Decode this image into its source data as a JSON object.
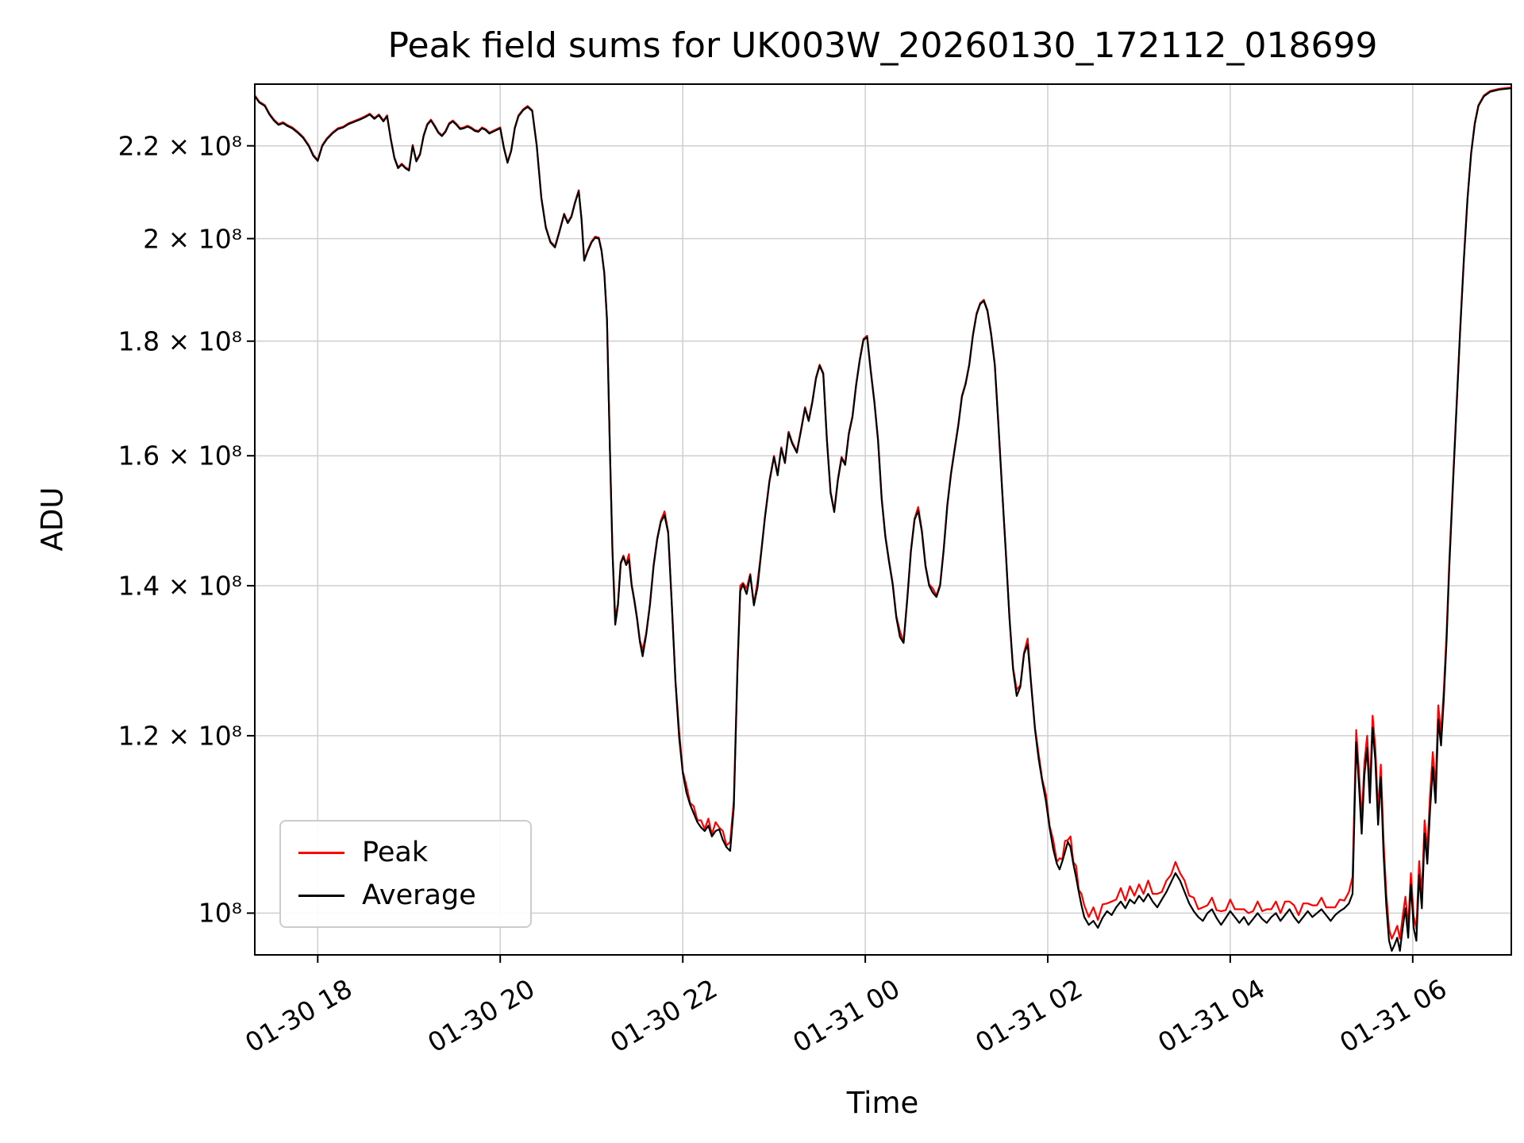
{
  "chart_data": {
    "type": "line",
    "title": "Peak field sums for UK003W_20260130_172112_018699",
    "xlabel": "Time",
    "ylabel": "ADU",
    "yscale": "log",
    "grid": true,
    "legend_position": "lower left",
    "x_unit": "hours since 2026-01-30 17:00",
    "y_unit": "ADU, values stored as multiples of 1e8",
    "xlim": [
      0.31,
      14.08
    ],
    "ylim": [
      0.958,
      2.344
    ],
    "xticks": [
      {
        "t": 1,
        "label": "01-30 18"
      },
      {
        "t": 3,
        "label": "01-30 20"
      },
      {
        "t": 5,
        "label": "01-30 22"
      },
      {
        "t": 7,
        "label": "01-31 00"
      },
      {
        "t": 9,
        "label": "01-31 02"
      },
      {
        "t": 11,
        "label": "01-31 04"
      },
      {
        "t": 13,
        "label": "01-31 06"
      }
    ],
    "yticks": [
      {
        "v": 1.0,
        "label": "10⁸"
      },
      {
        "v": 1.2,
        "label": "1.2 × 10⁸"
      },
      {
        "v": 1.4,
        "label": "1.4 × 10⁸"
      },
      {
        "v": 1.6,
        "label": "1.6 × 10⁸"
      },
      {
        "v": 1.8,
        "label": "1.8 × 10⁸"
      },
      {
        "v": 2.0,
        "label": "2 × 10⁸"
      },
      {
        "v": 2.2,
        "label": "2.2 × 10⁸"
      }
    ],
    "series": [
      {
        "name": "Peak",
        "color": "#ff0000",
        "derived": "average + delta"
      },
      {
        "name": "Average",
        "color": "#000000"
      }
    ],
    "points_format": "[t_hours, average_1e8, peak_delta_1e8 optional (default 0.002)]",
    "points": [
      [
        0.31,
        2.315
      ],
      [
        0.36,
        2.3
      ],
      [
        0.42,
        2.292
      ],
      [
        0.47,
        2.272
      ],
      [
        0.52,
        2.258
      ],
      [
        0.57,
        2.248
      ],
      [
        0.62,
        2.252
      ],
      [
        0.67,
        2.245
      ],
      [
        0.72,
        2.24
      ],
      [
        0.78,
        2.23
      ],
      [
        0.84,
        2.218
      ],
      [
        0.9,
        2.2
      ],
      [
        0.95,
        2.178
      ],
      [
        1.0,
        2.166
      ],
      [
        1.05,
        2.2
      ],
      [
        1.1,
        2.215
      ],
      [
        1.16,
        2.228
      ],
      [
        1.22,
        2.238
      ],
      [
        1.28,
        2.242
      ],
      [
        1.34,
        2.25
      ],
      [
        1.4,
        2.255
      ],
      [
        1.46,
        2.26
      ],
      [
        1.52,
        2.266
      ],
      [
        1.57,
        2.272
      ],
      [
        1.62,
        2.262
      ],
      [
        1.67,
        2.27
      ],
      [
        1.72,
        2.256
      ],
      [
        1.76,
        2.268
      ],
      [
        1.8,
        2.215
      ],
      [
        1.84,
        2.172
      ],
      [
        1.88,
        2.15
      ],
      [
        1.92,
        2.158
      ],
      [
        1.96,
        2.15
      ],
      [
        2.0,
        2.145
      ],
      [
        2.04,
        2.2
      ],
      [
        2.08,
        2.165
      ],
      [
        2.12,
        2.18
      ],
      [
        2.16,
        2.222
      ],
      [
        2.2,
        2.248
      ],
      [
        2.24,
        2.258
      ],
      [
        2.28,
        2.245
      ],
      [
        2.32,
        2.23
      ],
      [
        2.36,
        2.222
      ],
      [
        2.4,
        2.232
      ],
      [
        2.44,
        2.25
      ],
      [
        2.48,
        2.256
      ],
      [
        2.52,
        2.248
      ],
      [
        2.56,
        2.238
      ],
      [
        2.6,
        2.24
      ],
      [
        2.64,
        2.244
      ],
      [
        2.68,
        2.24
      ],
      [
        2.72,
        2.234
      ],
      [
        2.76,
        2.232
      ],
      [
        2.8,
        2.24
      ],
      [
        2.84,
        2.236
      ],
      [
        2.88,
        2.228
      ],
      [
        2.92,
        2.232
      ],
      [
        2.96,
        2.236
      ],
      [
        3.0,
        2.24
      ],
      [
        3.04,
        2.195
      ],
      [
        3.08,
        2.162
      ],
      [
        3.12,
        2.188
      ],
      [
        3.16,
        2.24
      ],
      [
        3.2,
        2.268
      ],
      [
        3.25,
        2.282
      ],
      [
        3.3,
        2.29
      ],
      [
        3.35,
        2.28
      ],
      [
        3.4,
        2.2
      ],
      [
        3.45,
        2.085
      ],
      [
        3.5,
        2.022
      ],
      [
        3.55,
        1.992
      ],
      [
        3.6,
        1.982
      ],
      [
        3.65,
        2.015
      ],
      [
        3.7,
        2.05
      ],
      [
        3.74,
        2.032
      ],
      [
        3.78,
        2.045
      ],
      [
        3.82,
        2.075
      ],
      [
        3.86,
        2.1
      ],
      [
        3.89,
        2.04
      ],
      [
        3.92,
        1.955
      ],
      [
        3.96,
        1.975
      ],
      [
        4.0,
        1.992
      ],
      [
        4.04,
        2.002
      ],
      [
        4.08,
        2.0
      ],
      [
        4.11,
        1.975
      ],
      [
        4.14,
        1.93
      ],
      [
        4.17,
        1.84
      ],
      [
        4.2,
        1.62
      ],
      [
        4.23,
        1.45
      ],
      [
        4.26,
        1.345,
        0.01
      ],
      [
        4.29,
        1.372
      ],
      [
        4.32,
        1.432
      ],
      [
        4.35,
        1.442
      ],
      [
        4.38,
        1.43
      ],
      [
        4.41,
        1.438,
        0.008
      ],
      [
        4.44,
        1.4
      ],
      [
        4.47,
        1.378
      ],
      [
        4.5,
        1.352
      ],
      [
        4.53,
        1.322
      ],
      [
        4.56,
        1.302,
        0.008
      ],
      [
        4.6,
        1.332
      ],
      [
        4.64,
        1.372
      ],
      [
        4.68,
        1.428
      ],
      [
        4.72,
        1.468
      ],
      [
        4.76,
        1.495
      ],
      [
        4.8,
        1.505,
        0.006
      ],
      [
        4.84,
        1.478
      ],
      [
        4.88,
        1.372
      ],
      [
        4.92,
        1.268
      ],
      [
        4.96,
        1.198,
        0.008
      ],
      [
        5.0,
        1.155
      ],
      [
        5.04,
        1.132,
        0.008
      ],
      [
        5.08,
        1.118
      ],
      [
        5.12,
        1.108,
        0.008
      ],
      [
        5.16,
        1.098
      ],
      [
        5.2,
        1.092,
        0.008
      ],
      [
        5.24,
        1.088
      ],
      [
        5.28,
        1.094,
        0.008
      ],
      [
        5.32,
        1.082
      ],
      [
        5.36,
        1.088,
        0.01
      ],
      [
        5.4,
        1.09
      ],
      [
        5.44,
        1.078,
        0.01
      ],
      [
        5.48,
        1.07
      ],
      [
        5.52,
        1.066,
        0.01
      ],
      [
        5.56,
        1.115,
        0.008
      ],
      [
        5.6,
        1.285
      ],
      [
        5.63,
        1.392,
        0.008
      ],
      [
        5.66,
        1.402
      ],
      [
        5.7,
        1.388,
        0.008
      ],
      [
        5.74,
        1.415
      ],
      [
        5.78,
        1.372
      ],
      [
        5.82,
        1.398,
        0.008
      ],
      [
        5.86,
        1.448
      ],
      [
        5.9,
        1.5
      ],
      [
        5.95,
        1.558
      ],
      [
        6.0,
        1.598
      ],
      [
        6.04,
        1.568
      ],
      [
        6.08,
        1.612
      ],
      [
        6.12,
        1.588
      ],
      [
        6.16,
        1.638
      ],
      [
        6.2,
        1.62
      ],
      [
        6.25,
        1.605
      ],
      [
        6.3,
        1.645
      ],
      [
        6.34,
        1.68
      ],
      [
        6.38,
        1.658
      ],
      [
        6.42,
        1.69
      ],
      [
        6.46,
        1.732
      ],
      [
        6.5,
        1.755
      ],
      [
        6.54,
        1.74
      ],
      [
        6.58,
        1.625
      ],
      [
        6.62,
        1.54
      ],
      [
        6.66,
        1.51
      ],
      [
        6.7,
        1.56
      ],
      [
        6.74,
        1.596
      ],
      [
        6.78,
        1.585
      ],
      [
        6.82,
        1.636
      ],
      [
        6.86,
        1.665
      ],
      [
        6.9,
        1.72
      ],
      [
        6.94,
        1.765
      ],
      [
        6.98,
        1.802
      ],
      [
        7.02,
        1.808
      ],
      [
        7.06,
        1.745
      ],
      [
        7.1,
        1.69
      ],
      [
        7.14,
        1.625
      ],
      [
        7.18,
        1.53
      ],
      [
        7.22,
        1.472
      ],
      [
        7.26,
        1.435
      ],
      [
        7.3,
        1.402
      ],
      [
        7.34,
        1.355
      ],
      [
        7.38,
        1.328,
        0.008
      ],
      [
        7.42,
        1.32
      ],
      [
        7.46,
        1.38
      ],
      [
        7.5,
        1.45
      ],
      [
        7.54,
        1.498
      ],
      [
        7.58,
        1.512,
        0.006
      ],
      [
        7.62,
        1.48
      ],
      [
        7.66,
        1.428
      ],
      [
        7.7,
        1.4
      ],
      [
        7.74,
        1.39,
        0.006
      ],
      [
        7.78,
        1.384
      ],
      [
        7.82,
        1.4
      ],
      [
        7.86,
        1.452
      ],
      [
        7.9,
        1.52
      ],
      [
        7.94,
        1.57
      ],
      [
        7.98,
        1.61
      ],
      [
        8.02,
        1.65
      ],
      [
        8.06,
        1.7
      ],
      [
        8.1,
        1.722
      ],
      [
        8.14,
        1.756
      ],
      [
        8.18,
        1.81
      ],
      [
        8.22,
        1.85
      ],
      [
        8.26,
        1.87
      ],
      [
        8.3,
        1.876
      ],
      [
        8.34,
        1.856
      ],
      [
        8.38,
        1.812
      ],
      [
        8.42,
        1.756
      ],
      [
        8.46,
        1.65
      ],
      [
        8.5,
        1.545
      ],
      [
        8.54,
        1.45
      ],
      [
        8.58,
        1.355
      ],
      [
        8.62,
        1.285
      ],
      [
        8.66,
        1.25,
        0.008
      ],
      [
        8.7,
        1.262
      ],
      [
        8.74,
        1.305
      ],
      [
        8.78,
        1.318,
        0.008
      ],
      [
        8.82,
        1.262
      ],
      [
        8.86,
        1.208
      ],
      [
        8.9,
        1.172,
        0.006
      ],
      [
        8.94,
        1.145
      ],
      [
        8.98,
        1.122,
        0.008
      ],
      [
        9.02,
        1.092
      ],
      [
        9.06,
        1.068,
        0.01
      ],
      [
        9.1,
        1.052
      ],
      [
        9.13,
        1.046,
        0.012
      ],
      [
        9.16,
        1.055
      ],
      [
        9.19,
        1.065,
        0.012
      ],
      [
        9.22,
        1.076
      ],
      [
        9.25,
        1.07,
        0.012
      ],
      [
        9.28,
        1.052
      ],
      [
        9.31,
        1.038,
        0.012
      ],
      [
        9.34,
        1.022
      ],
      [
        9.37,
        1.008,
        0.012
      ],
      [
        9.4,
        0.996,
        0.012
      ],
      [
        9.45,
        0.988,
        0.008
      ],
      [
        9.5,
        0.992,
        0.014
      ],
      [
        9.55,
        0.985,
        0.008
      ],
      [
        9.6,
        0.995,
        0.014
      ],
      [
        9.65,
        1.002,
        0.008
      ],
      [
        9.7,
        0.998,
        0.014
      ],
      [
        9.75,
        1.006,
        0.008
      ],
      [
        9.8,
        1.012,
        0.014
      ],
      [
        9.85,
        1.005,
        0.008
      ],
      [
        9.9,
        1.014,
        0.014
      ],
      [
        9.95,
        1.01,
        0.008
      ],
      [
        10.0,
        1.018,
        0.012
      ],
      [
        10.05,
        1.012,
        0.008
      ],
      [
        10.1,
        1.02,
        0.014
      ],
      [
        10.15,
        1.012,
        0.008
      ],
      [
        10.2,
        1.006,
        0.014
      ],
      [
        10.25,
        1.014,
        0.008
      ],
      [
        10.3,
        1.022,
        0.012
      ],
      [
        10.35,
        1.032,
        0.008
      ],
      [
        10.4,
        1.042,
        0.012
      ],
      [
        10.45,
        1.034,
        0.008
      ],
      [
        10.5,
        1.022,
        0.012
      ],
      [
        10.55,
        1.01,
        0.008
      ],
      [
        10.6,
        1.002,
        0.014
      ],
      [
        10.65,
        0.996,
        0.008
      ],
      [
        10.7,
        0.992,
        0.014
      ],
      [
        10.75,
        1.0,
        0.008
      ],
      [
        10.8,
        1.004,
        0.012
      ],
      [
        10.85,
        0.995,
        0.008
      ],
      [
        10.9,
        0.988,
        0.014
      ],
      [
        10.95,
        0.995,
        0.008
      ],
      [
        11.0,
        1.002,
        0.012
      ],
      [
        11.05,
        0.996,
        0.008
      ],
      [
        11.1,
        0.99,
        0.014
      ],
      [
        11.15,
        0.996,
        0.008
      ],
      [
        11.2,
        0.988,
        0.012
      ],
      [
        11.25,
        0.994,
        0.008
      ],
      [
        11.3,
        1.0,
        0.012
      ],
      [
        11.35,
        0.994,
        0.008
      ],
      [
        11.4,
        0.99,
        0.014
      ],
      [
        11.45,
        0.996,
        0.008
      ],
      [
        11.5,
        1.0,
        0.012
      ],
      [
        11.55,
        0.992,
        0.008
      ],
      [
        11.6,
        0.998,
        0.014
      ],
      [
        11.65,
        1.004,
        0.008
      ],
      [
        11.7,
        0.996,
        0.012
      ],
      [
        11.75,
        0.99,
        0.008
      ],
      [
        11.8,
        0.996,
        0.014
      ],
      [
        11.85,
        1.002,
        0.008
      ],
      [
        11.9,
        0.996,
        0.012
      ],
      [
        11.95,
        1.0,
        0.008
      ],
      [
        12.0,
        1.004,
        0.012
      ],
      [
        12.05,
        0.998,
        0.008
      ],
      [
        12.1,
        0.992,
        0.014
      ],
      [
        12.15,
        0.998,
        0.008
      ],
      [
        12.2,
        1.002,
        0.012
      ],
      [
        12.25,
        1.005,
        0.008
      ],
      [
        12.3,
        1.01,
        0.012
      ],
      [
        12.34,
        1.02,
        0.018
      ],
      [
        12.38,
        1.192,
        0.015
      ],
      [
        12.41,
        1.142,
        0.015
      ],
      [
        12.44,
        1.085,
        0.015
      ],
      [
        12.47,
        1.152,
        0.015
      ],
      [
        12.5,
        1.185,
        0.015
      ],
      [
        12.53,
        1.12,
        0.015
      ],
      [
        12.56,
        1.21,
        0.015
      ],
      [
        12.59,
        1.17,
        0.015
      ],
      [
        12.62,
        1.095,
        0.015
      ],
      [
        12.65,
        1.15,
        0.015
      ],
      [
        12.68,
        1.062,
        0.015
      ],
      [
        12.71,
        1.008,
        0.012
      ],
      [
        12.74,
        0.972,
        0.012
      ],
      [
        12.77,
        0.962,
        0.012
      ],
      [
        12.8,
        0.968,
        0.012
      ],
      [
        12.83,
        0.975,
        0.012
      ],
      [
        12.86,
        0.962,
        0.012
      ],
      [
        12.89,
        0.985,
        0.012
      ],
      [
        12.92,
        1.005,
        0.012
      ],
      [
        12.95,
        0.975,
        0.012
      ],
      [
        12.98,
        1.03,
        0.012
      ],
      [
        13.01,
        0.985,
        0.012
      ],
      [
        13.04,
        0.972,
        0.012
      ],
      [
        13.07,
        1.04,
        0.015
      ],
      [
        13.1,
        1.005,
        0.015
      ],
      [
        13.13,
        1.085,
        0.015
      ],
      [
        13.16,
        1.052,
        0.015
      ],
      [
        13.19,
        1.112,
        0.018
      ],
      [
        13.22,
        1.162,
        0.018
      ],
      [
        13.25,
        1.12,
        0.018
      ],
      [
        13.28,
        1.22,
        0.018
      ],
      [
        13.31,
        1.188,
        0.015
      ],
      [
        13.34,
        1.245,
        0.012
      ],
      [
        13.37,
        1.322,
        0.01
      ],
      [
        13.4,
        1.425,
        0.008
      ],
      [
        13.44,
        1.55,
        0.006
      ],
      [
        13.48,
        1.68,
        0.005
      ],
      [
        13.52,
        1.82,
        0.004
      ],
      [
        13.56,
        1.955,
        0.004
      ],
      [
        13.6,
        2.082,
        0.003
      ],
      [
        13.64,
        2.182,
        0.003
      ],
      [
        13.68,
        2.25,
        0.003
      ],
      [
        13.72,
        2.292
      ],
      [
        13.78,
        2.315
      ],
      [
        13.85,
        2.326
      ],
      [
        13.95,
        2.331
      ],
      [
        14.08,
        2.334
      ]
    ]
  }
}
